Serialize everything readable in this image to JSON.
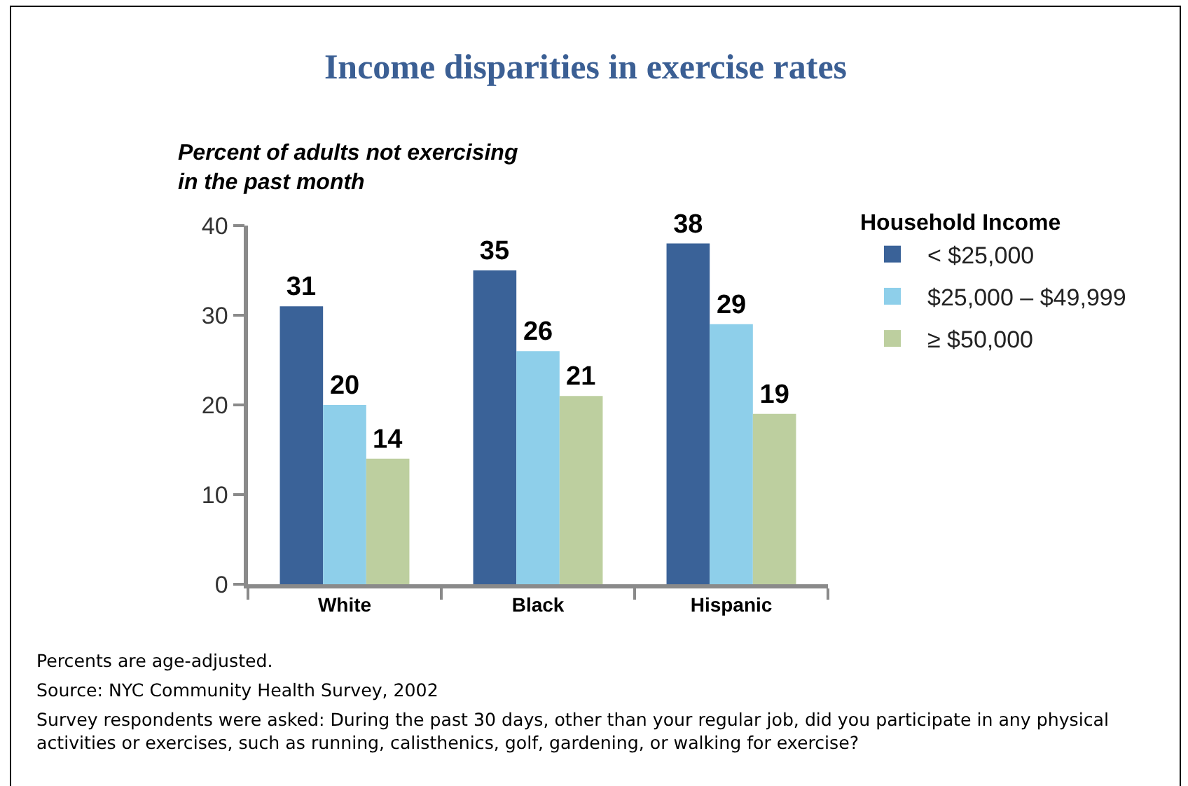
{
  "chart_data": {
    "type": "bar",
    "title": "Income disparities in exercise rates",
    "ylabel": "Percent of adults not exercising in the past month",
    "legend_title": "Household Income",
    "categories": [
      "White",
      "Black",
      "Hispanic"
    ],
    "series": [
      {
        "name": "< $25,000",
        "color": "#3a6298",
        "values": [
          31,
          35,
          38
        ]
      },
      {
        "name": "$25,000 – $49,999",
        "color": "#8ecfea",
        "values": [
          20,
          26,
          29
        ]
      },
      {
        "name": "≥ $50,000",
        "color": "#bdcf9f",
        "values": [
          14,
          21,
          19
        ]
      }
    ],
    "ylim": [
      0,
      40
    ],
    "yticks": [
      0,
      10,
      20,
      30,
      40
    ],
    "data_labels": true,
    "legend": "top right",
    "annotations": [
      "Percents are age-adjusted.",
      "Source: NYC Community Health Survey, 2002",
      "Survey respondents were asked: During the past 30 days, other than your regular job, did you participate in any physical activities or exercises, such as running, calisthenics, golf, gardening, or walking for exercise?"
    ]
  }
}
